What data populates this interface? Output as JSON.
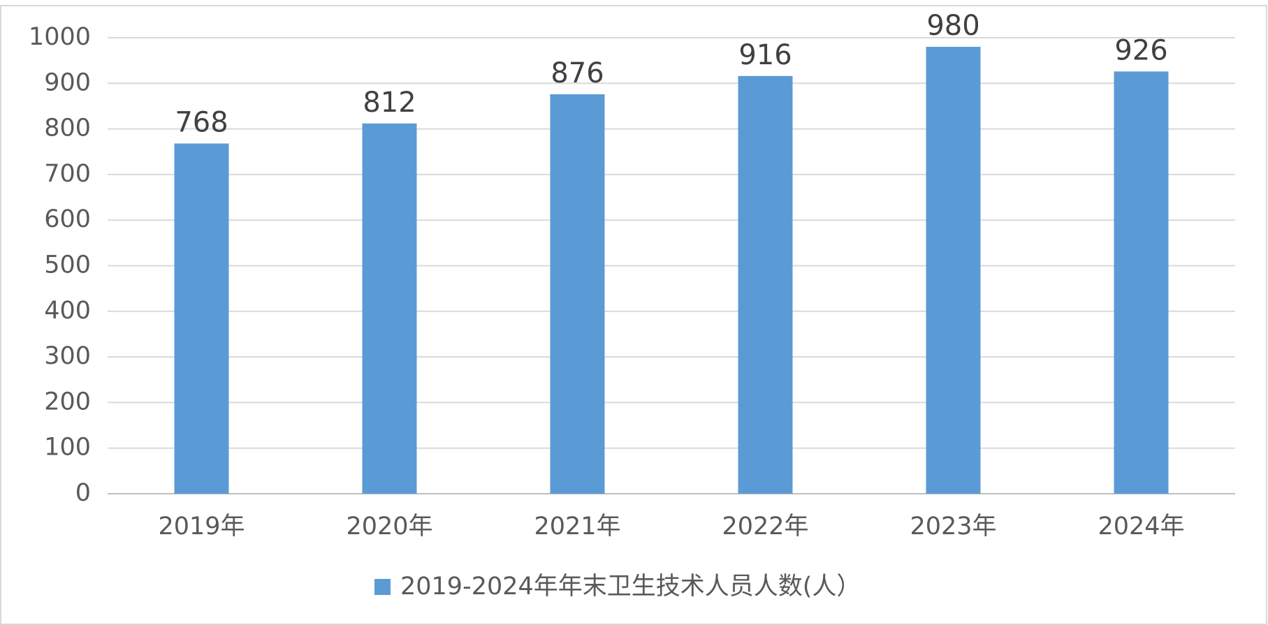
{
  "chart_data": {
    "type": "bar",
    "categories": [
      "2019年",
      "2020年",
      "2021年",
      "2022年",
      "2023年",
      "2024年"
    ],
    "series": [
      {
        "name": "2019-2024年年末卫生技术人员人数(人）",
        "color": "#5b9bd5",
        "values": [
          768,
          812,
          876,
          916,
          980,
          926
        ]
      }
    ],
    "ylim": [
      0,
      1000
    ],
    "yticks": [
      0,
      100,
      200,
      300,
      400,
      500,
      600,
      700,
      800,
      900,
      1000
    ],
    "grid": true,
    "legend": "bottom"
  }
}
